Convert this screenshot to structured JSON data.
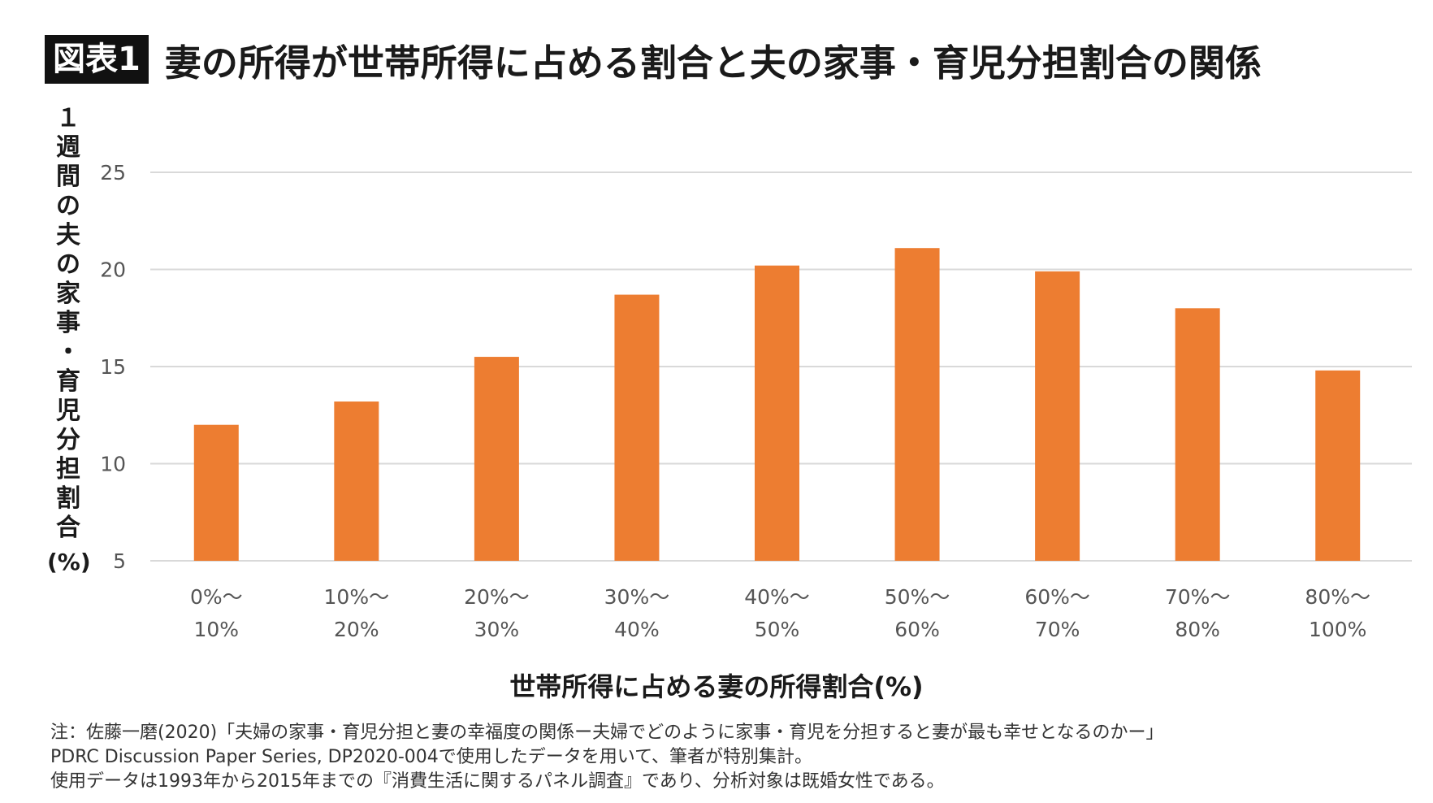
{
  "title": {
    "badge": "図表1",
    "text": "妻の所得が世帯所得に占める割合と夫の家事・育児分担割合の関係"
  },
  "notes": [
    "注：佐藤一磨(2020)「夫婦の家事・育児分担と妻の幸福度の関係ー夫婦でどのように家事・育児を分担すると妻が最も幸せとなるのかー」",
    "PDRC Discussion Paper Series, DP2020-004で使用したデータを用いて、筆者が特別集計。",
    "使用データは1993年から2015年までの『消費生活に関するパネル調査』であり、分析対象は既婚女性である。"
  ],
  "colors": {
    "bar": "#ED7D31",
    "grid": "#D9D9D9",
    "title_badge_bg": "#111111"
  },
  "chart_data": {
    "type": "bar",
    "title": "妻の所得が世帯所得に占める割合と夫の家事・育児分担割合の関係",
    "xlabel": "世帯所得に占める妻の所得割合(%)",
    "ylabel_chars": [
      "１",
      "週",
      "間",
      "の",
      "夫",
      "の",
      "家",
      "事",
      "・",
      "育",
      "児",
      "分",
      "担",
      "割",
      "合"
    ],
    "ylabel_unit": "(%)",
    "categories": [
      [
        "0%〜",
        "10%"
      ],
      [
        "10%〜",
        "20%"
      ],
      [
        "20%〜",
        "30%"
      ],
      [
        "30%〜",
        "40%"
      ],
      [
        "40%〜",
        "50%"
      ],
      [
        "50%〜",
        "60%"
      ],
      [
        "60%〜",
        "70%"
      ],
      [
        "70%〜",
        "80%"
      ],
      [
        "80%〜",
        "100%"
      ]
    ],
    "values": [
      12.0,
      13.2,
      15.5,
      18.7,
      20.2,
      21.1,
      19.9,
      18.0,
      14.8
    ],
    "ylim": [
      5,
      25
    ],
    "yticks": [
      5,
      10,
      15,
      20,
      25
    ],
    "grid": true,
    "legend": "none"
  }
}
